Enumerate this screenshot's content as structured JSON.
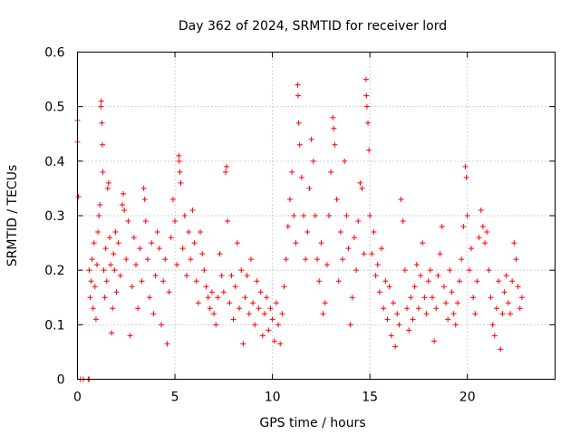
{
  "chart_data": {
    "type": "scatter",
    "title": "Day 362 of 2024, SRMTID for receiver lord",
    "xlabel": "GPS time / hours",
    "ylabel": "SRMTID / TECUs",
    "xlim": [
      0,
      24.5
    ],
    "ylim": [
      0,
      0.6
    ],
    "x_ticks": [
      0,
      5,
      10,
      15,
      20
    ],
    "y_ticks": [
      0,
      0.1,
      0.2,
      0.3,
      0.4,
      0.5,
      0.6
    ],
    "x_tick_labels": [
      "0",
      "5",
      "10",
      "15",
      "20"
    ],
    "y_tick_labels": [
      "0",
      "0.1",
      "0.2",
      "0.3",
      "0.4",
      "0.5",
      "0.6"
    ],
    "grid": true,
    "marker": "+",
    "color": "#ff0000",
    "series": [
      {
        "name": "SRMTID",
        "points": [
          [
            0.0,
            0.475
          ],
          [
            0.0,
            0.435
          ],
          [
            0.05,
            0.335
          ],
          [
            0.15,
            0.0
          ],
          [
            0.3,
            0.0
          ],
          [
            0.55,
            0.0
          ],
          [
            0.6,
            0.0
          ],
          [
            0.6,
            0.2
          ],
          [
            0.65,
            0.15
          ],
          [
            0.7,
            0.18
          ],
          [
            0.75,
            0.22
          ],
          [
            0.8,
            0.13
          ],
          [
            0.85,
            0.25
          ],
          [
            0.9,
            0.17
          ],
          [
            0.95,
            0.11
          ],
          [
            1.0,
            0.21
          ],
          [
            1.05,
            0.27
          ],
          [
            1.1,
            0.3
          ],
          [
            1.15,
            0.32
          ],
          [
            1.2,
            0.5
          ],
          [
            1.22,
            0.51
          ],
          [
            1.25,
            0.47
          ],
          [
            1.28,
            0.43
          ],
          [
            1.3,
            0.38
          ],
          [
            1.35,
            0.2
          ],
          [
            1.4,
            0.15
          ],
          [
            1.45,
            0.24
          ],
          [
            1.5,
            0.18
          ],
          [
            1.55,
            0.35
          ],
          [
            1.6,
            0.36
          ],
          [
            1.65,
            0.26
          ],
          [
            1.7,
            0.21
          ],
          [
            1.75,
            0.085
          ],
          [
            1.8,
            0.13
          ],
          [
            1.85,
            0.23
          ],
          [
            1.9,
            0.2
          ],
          [
            1.95,
            0.27
          ],
          [
            2.0,
            0.16
          ],
          [
            2.1,
            0.25
          ],
          [
            2.2,
            0.19
          ],
          [
            2.3,
            0.32
          ],
          [
            2.35,
            0.34
          ],
          [
            2.4,
            0.31
          ],
          [
            2.5,
            0.22
          ],
          [
            2.6,
            0.29
          ],
          [
            2.7,
            0.08
          ],
          [
            2.8,
            0.17
          ],
          [
            2.9,
            0.26
          ],
          [
            3.0,
            0.21
          ],
          [
            3.1,
            0.13
          ],
          [
            3.2,
            0.24
          ],
          [
            3.3,
            0.18
          ],
          [
            3.4,
            0.35
          ],
          [
            3.45,
            0.33
          ],
          [
            3.5,
            0.29
          ],
          [
            3.6,
            0.22
          ],
          [
            3.7,
            0.15
          ],
          [
            3.8,
            0.25
          ],
          [
            3.9,
            0.12
          ],
          [
            4.0,
            0.19
          ],
          [
            4.1,
            0.27
          ],
          [
            4.2,
            0.24
          ],
          [
            4.3,
            0.1
          ],
          [
            4.4,
            0.18
          ],
          [
            4.5,
            0.22
          ],
          [
            4.6,
            0.065
          ],
          [
            4.7,
            0.16
          ],
          [
            4.8,
            0.26
          ],
          [
            4.9,
            0.33
          ],
          [
            5.0,
            0.29
          ],
          [
            5.1,
            0.21
          ],
          [
            5.2,
            0.41
          ],
          [
            5.22,
            0.4
          ],
          [
            5.25,
            0.38
          ],
          [
            5.3,
            0.36
          ],
          [
            5.4,
            0.24
          ],
          [
            5.5,
            0.3
          ],
          [
            5.6,
            0.19
          ],
          [
            5.7,
            0.27
          ],
          [
            5.8,
            0.22
          ],
          [
            5.9,
            0.31
          ],
          [
            6.0,
            0.25
          ],
          [
            6.1,
            0.18
          ],
          [
            6.2,
            0.14
          ],
          [
            6.3,
            0.27
          ],
          [
            6.4,
            0.23
          ],
          [
            6.5,
            0.2
          ],
          [
            6.6,
            0.17
          ],
          [
            6.7,
            0.15
          ],
          [
            6.8,
            0.13
          ],
          [
            6.9,
            0.16
          ],
          [
            7.0,
            0.12
          ],
          [
            7.1,
            0.1
          ],
          [
            7.2,
            0.15
          ],
          [
            7.3,
            0.23
          ],
          [
            7.4,
            0.19
          ],
          [
            7.5,
            0.16
          ],
          [
            7.6,
            0.38
          ],
          [
            7.65,
            0.39
          ],
          [
            7.7,
            0.29
          ],
          [
            7.8,
            0.14
          ],
          [
            7.9,
            0.19
          ],
          [
            8.0,
            0.11
          ],
          [
            8.1,
            0.17
          ],
          [
            8.2,
            0.25
          ],
          [
            8.3,
            0.13
          ],
          [
            8.4,
            0.2
          ],
          [
            8.5,
            0.065
          ],
          [
            8.6,
            0.15
          ],
          [
            8.7,
            0.19
          ],
          [
            8.8,
            0.12
          ],
          [
            8.9,
            0.22
          ],
          [
            9.0,
            0.14
          ],
          [
            9.1,
            0.1
          ],
          [
            9.2,
            0.18
          ],
          [
            9.3,
            0.13
          ],
          [
            9.4,
            0.16
          ],
          [
            9.5,
            0.08
          ],
          [
            9.6,
            0.12
          ],
          [
            9.7,
            0.15
          ],
          [
            9.8,
            0.09
          ],
          [
            9.9,
            0.13
          ],
          [
            10.0,
            0.11
          ],
          [
            10.1,
            0.07
          ],
          [
            10.2,
            0.14
          ],
          [
            10.3,
            0.1
          ],
          [
            10.4,
            0.065
          ],
          [
            10.5,
            0.12
          ],
          [
            10.6,
            0.17
          ],
          [
            10.7,
            0.22
          ],
          [
            10.8,
            0.28
          ],
          [
            10.9,
            0.33
          ],
          [
            11.0,
            0.38
          ],
          [
            11.1,
            0.3
          ],
          [
            11.2,
            0.25
          ],
          [
            11.3,
            0.54
          ],
          [
            11.32,
            0.52
          ],
          [
            11.35,
            0.47
          ],
          [
            11.4,
            0.43
          ],
          [
            11.5,
            0.37
          ],
          [
            11.6,
            0.3
          ],
          [
            11.7,
            0.22
          ],
          [
            11.8,
            0.27
          ],
          [
            11.9,
            0.35
          ],
          [
            12.0,
            0.44
          ],
          [
            12.1,
            0.4
          ],
          [
            12.2,
            0.3
          ],
          [
            12.3,
            0.22
          ],
          [
            12.4,
            0.18
          ],
          [
            12.5,
            0.25
          ],
          [
            12.6,
            0.12
          ],
          [
            12.7,
            0.14
          ],
          [
            12.8,
            0.21
          ],
          [
            12.9,
            0.3
          ],
          [
            13.0,
            0.38
          ],
          [
            13.1,
            0.48
          ],
          [
            13.15,
            0.46
          ],
          [
            13.2,
            0.43
          ],
          [
            13.3,
            0.33
          ],
          [
            13.4,
            0.18
          ],
          [
            13.5,
            0.27
          ],
          [
            13.6,
            0.22
          ],
          [
            13.7,
            0.4
          ],
          [
            13.8,
            0.3
          ],
          [
            13.9,
            0.24
          ],
          [
            14.0,
            0.1
          ],
          [
            14.1,
            0.15
          ],
          [
            14.2,
            0.26
          ],
          [
            14.3,
            0.2
          ],
          [
            14.4,
            0.29
          ],
          [
            14.5,
            0.36
          ],
          [
            14.6,
            0.35
          ],
          [
            14.7,
            0.23
          ],
          [
            14.8,
            0.55
          ],
          [
            14.82,
            0.52
          ],
          [
            14.85,
            0.5
          ],
          [
            14.9,
            0.47
          ],
          [
            14.95,
            0.42
          ],
          [
            15.0,
            0.3
          ],
          [
            15.1,
            0.23
          ],
          [
            15.2,
            0.27
          ],
          [
            15.3,
            0.19
          ],
          [
            15.4,
            0.21
          ],
          [
            15.5,
            0.16
          ],
          [
            15.6,
            0.24
          ],
          [
            15.7,
            0.13
          ],
          [
            15.8,
            0.18
          ],
          [
            15.9,
            0.11
          ],
          [
            16.0,
            0.17
          ],
          [
            16.1,
            0.08
          ],
          [
            16.2,
            0.14
          ],
          [
            16.3,
            0.06
          ],
          [
            16.4,
            0.12
          ],
          [
            16.5,
            0.1
          ],
          [
            16.6,
            0.33
          ],
          [
            16.7,
            0.29
          ],
          [
            16.8,
            0.2
          ],
          [
            16.9,
            0.13
          ],
          [
            17.0,
            0.09
          ],
          [
            17.1,
            0.15
          ],
          [
            17.2,
            0.11
          ],
          [
            17.3,
            0.17
          ],
          [
            17.4,
            0.21
          ],
          [
            17.5,
            0.13
          ],
          [
            17.6,
            0.19
          ],
          [
            17.7,
            0.25
          ],
          [
            17.8,
            0.15
          ],
          [
            17.9,
            0.12
          ],
          [
            18.0,
            0.18
          ],
          [
            18.1,
            0.2
          ],
          [
            18.2,
            0.15
          ],
          [
            18.3,
            0.07
          ],
          [
            18.4,
            0.13
          ],
          [
            18.5,
            0.19
          ],
          [
            18.6,
            0.23
          ],
          [
            18.7,
            0.28
          ],
          [
            18.8,
            0.17
          ],
          [
            18.9,
            0.14
          ],
          [
            19.0,
            0.11
          ],
          [
            19.1,
            0.2
          ],
          [
            19.2,
            0.16
          ],
          [
            19.3,
            0.12
          ],
          [
            19.4,
            0.1
          ],
          [
            19.5,
            0.14
          ],
          [
            19.6,
            0.18
          ],
          [
            19.7,
            0.22
          ],
          [
            19.8,
            0.28
          ],
          [
            19.9,
            0.39
          ],
          [
            19.95,
            0.37
          ],
          [
            20.0,
            0.3
          ],
          [
            20.1,
            0.2
          ],
          [
            20.2,
            0.24
          ],
          [
            20.3,
            0.15
          ],
          [
            20.4,
            0.12
          ],
          [
            20.5,
            0.18
          ],
          [
            20.6,
            0.26
          ],
          [
            20.7,
            0.31
          ],
          [
            20.8,
            0.28
          ],
          [
            20.9,
            0.25
          ],
          [
            21.0,
            0.27
          ],
          [
            21.1,
            0.2
          ],
          [
            21.2,
            0.15
          ],
          [
            21.3,
            0.1
          ],
          [
            21.4,
            0.08
          ],
          [
            21.5,
            0.13
          ],
          [
            21.6,
            0.18
          ],
          [
            21.7,
            0.055
          ],
          [
            21.8,
            0.12
          ],
          [
            21.9,
            0.16
          ],
          [
            22.0,
            0.19
          ],
          [
            22.1,
            0.14
          ],
          [
            22.2,
            0.12
          ],
          [
            22.3,
            0.18
          ],
          [
            22.4,
            0.25
          ],
          [
            22.5,
            0.22
          ],
          [
            22.6,
            0.17
          ],
          [
            22.7,
            0.13
          ],
          [
            22.8,
            0.15
          ]
        ]
      }
    ]
  }
}
